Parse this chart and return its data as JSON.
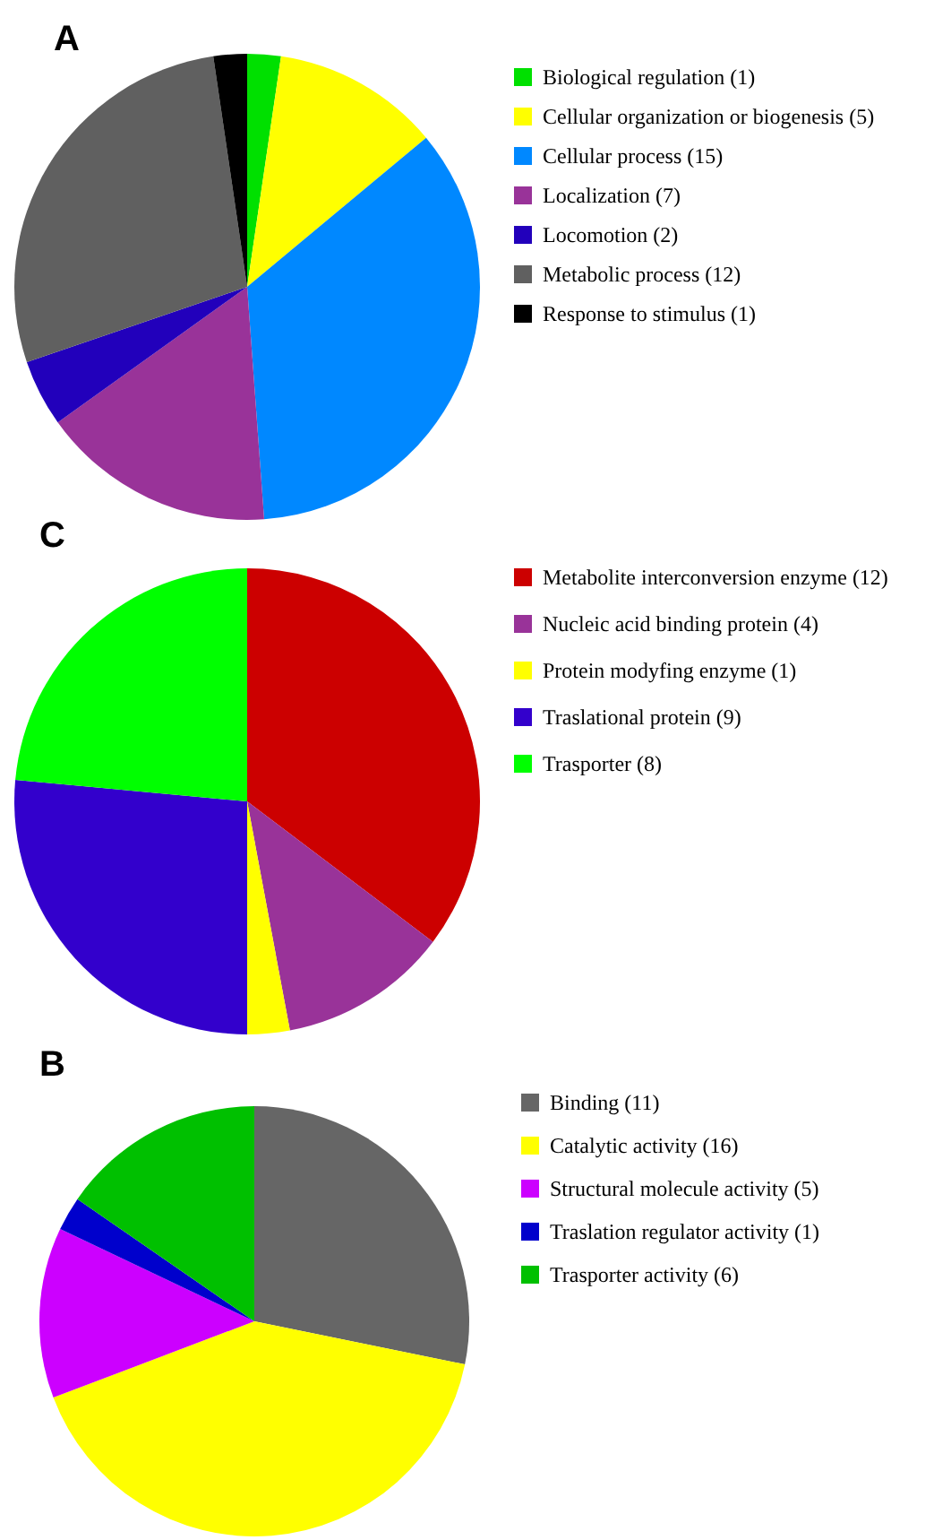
{
  "chart_data": [
    {
      "type": "pie",
      "title": "A",
      "categories": [
        "Biological regulation (1)",
        "Cellular organization or biogenesis (5)",
        "Cellular process (15)",
        "Localization (7)",
        "Locomotion (2)",
        "Metabolic process (12)",
        "Response to stimulus (1)"
      ],
      "values": [
        1,
        5,
        15,
        7,
        2,
        12,
        1
      ],
      "colors": [
        "#00e000",
        "#ffff00",
        "#0088ff",
        "#993399",
        "#2200bb",
        "#606060",
        "#000000"
      ],
      "legend": "right"
    },
    {
      "type": "pie",
      "title": "C",
      "categories": [
        "Metabolite interconversion enzyme (12)",
        "Nucleic acid binding protein (4)",
        "Protein modyfing enzyme (1)",
        "Traslational protein (9)",
        "Trasporter (8)"
      ],
      "values": [
        12,
        4,
        1,
        9,
        8
      ],
      "colors": [
        "#cc0000",
        "#993399",
        "#ffff00",
        "#3300cc",
        "#00ff00"
      ],
      "legend": "right"
    },
    {
      "type": "pie",
      "title": "B",
      "categories": [
        "Binding (11)",
        "Catalytic activity (16)",
        "Structural molecule activity (5)",
        "Traslation regulator activity (1)",
        "Trasporter activity (6)"
      ],
      "values": [
        11,
        16,
        5,
        1,
        6
      ],
      "colors": [
        "#666666",
        "#ffff00",
        "#cc00ff",
        "#0000cc",
        "#00c000"
      ],
      "legend": "right"
    }
  ]
}
